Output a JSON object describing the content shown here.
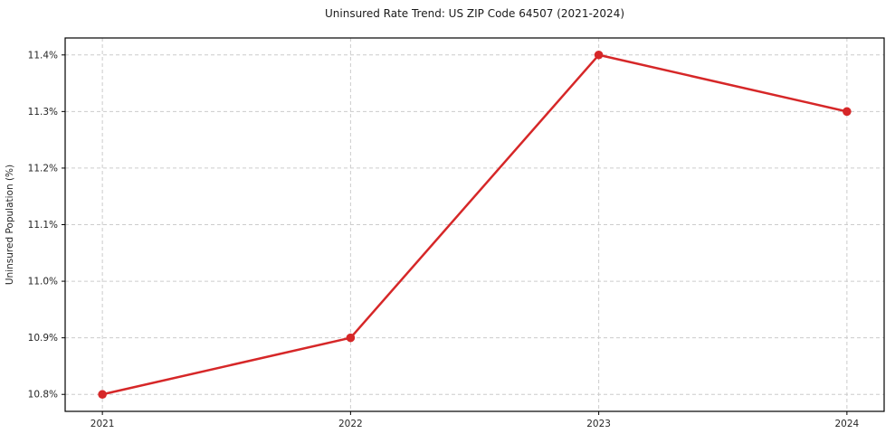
{
  "chart_data": {
    "type": "line",
    "title": "Uninsured Rate Trend: US ZIP Code 64507 (2021-2024)",
    "xlabel": "",
    "ylabel": "Uninsured Population (%)",
    "x": [
      2021,
      2022,
      2023,
      2024
    ],
    "x_tick_labels": [
      "2021",
      "2022",
      "2023",
      "2024"
    ],
    "series": [
      {
        "values": [
          10.8,
          10.9,
          11.4,
          11.3
        ]
      }
    ],
    "y_ticks": [
      10.8,
      10.9,
      11.0,
      11.1,
      11.2,
      11.3,
      11.4
    ],
    "y_tick_labels": [
      "10.8%",
      "10.9%",
      "11.0%",
      "11.1%",
      "11.2%",
      "11.3%",
      "11.4%"
    ],
    "ylim": [
      10.77,
      11.43
    ],
    "xlim": [
      2020.85,
      2024.15
    ],
    "grid": true,
    "grid_style": "dashed",
    "legend": false
  },
  "colors": {
    "line": "#d62728",
    "marker": "#d62728",
    "grid": "#cccccc",
    "spine": "#000000",
    "background": "#ffffff"
  }
}
